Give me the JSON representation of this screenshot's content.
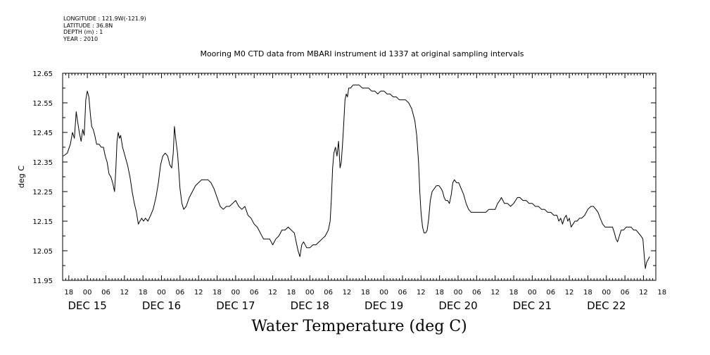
{
  "header": {
    "longitude": "LONGITUDE : 121.9W(-121.9)",
    "latitude": "LATITUDE : 36.8N",
    "depth": "DEPTH (m) : 1",
    "year": "YEAR : 2010"
  },
  "footer_title": "Water Temperature (deg C)",
  "chart_data": {
    "type": "line",
    "title": "Mooring M0 CTD data from MBARI instrument id 1337 at original sampling intervals",
    "xlabel": "",
    "ylabel": "deg C",
    "ylim": [
      11.95,
      12.65
    ],
    "xlim_hours": [
      -8,
      184
    ],
    "y_tick_labels": [
      "11.95",
      "12.05",
      "12.15",
      "12.25",
      "12.35",
      "12.45",
      "12.55",
      "12.65"
    ],
    "x_hour_labels": [
      "18",
      "00",
      "06",
      "12",
      "18",
      "00",
      "06",
      "12",
      "18",
      "00",
      "06",
      "12",
      "18",
      "00",
      "06",
      "12",
      "18",
      "00",
      "06",
      "12",
      "18",
      "00",
      "06",
      "12",
      "18",
      "00",
      "06",
      "12",
      "18",
      "00",
      "06",
      "12",
      "18"
    ],
    "x_day_labels": [
      "DEC 15",
      "DEC 16",
      "DEC 17",
      "DEC 18",
      "DEC 19",
      "DEC 20",
      "DEC 21",
      "DEC 22"
    ],
    "grid": false,
    "series": [
      {
        "color": "#000000",
        "points": [
          [
            -7.8,
            12.37
          ],
          [
            -6.5,
            12.38
          ],
          [
            -5.5,
            12.41
          ],
          [
            -4.8,
            12.45
          ],
          [
            -4.2,
            12.43
          ],
          [
            -3.6,
            12.52
          ],
          [
            -3.2,
            12.49
          ],
          [
            -2.6,
            12.45
          ],
          [
            -2.0,
            12.42
          ],
          [
            -1.5,
            12.46
          ],
          [
            -1.0,
            12.44
          ],
          [
            -0.5,
            12.56
          ],
          [
            0.0,
            12.59
          ],
          [
            0.5,
            12.57
          ],
          [
            1.0,
            12.51
          ],
          [
            1.4,
            12.47
          ],
          [
            1.9,
            12.46
          ],
          [
            2.4,
            12.44
          ],
          [
            3.0,
            12.41
          ],
          [
            3.8,
            12.41
          ],
          [
            4.5,
            12.4
          ],
          [
            5.2,
            12.4
          ],
          [
            5.8,
            12.37
          ],
          [
            6.4,
            12.35
          ],
          [
            7.0,
            12.31
          ],
          [
            7.6,
            12.3
          ],
          [
            8.2,
            12.28
          ],
          [
            8.8,
            12.25
          ],
          [
            9.2,
            12.32
          ],
          [
            9.6,
            12.42
          ],
          [
            10.0,
            12.45
          ],
          [
            10.4,
            12.43
          ],
          [
            10.8,
            12.44
          ],
          [
            11.4,
            12.4
          ],
          [
            12.2,
            12.37
          ],
          [
            13.0,
            12.34
          ],
          [
            13.8,
            12.3
          ],
          [
            14.5,
            12.25
          ],
          [
            15.2,
            12.21
          ],
          [
            15.9,
            12.18
          ],
          [
            16.5,
            12.14
          ],
          [
            17.0,
            12.15
          ],
          [
            17.6,
            12.16
          ],
          [
            18.2,
            12.15
          ],
          [
            18.8,
            12.16
          ],
          [
            19.6,
            12.15
          ],
          [
            20.5,
            12.17
          ],
          [
            21.3,
            12.19
          ],
          [
            22.2,
            12.23
          ],
          [
            23.0,
            12.28
          ],
          [
            23.7,
            12.34
          ],
          [
            24.4,
            12.37
          ],
          [
            25.2,
            12.38
          ],
          [
            26.0,
            12.37
          ],
          [
            26.7,
            12.34
          ],
          [
            27.3,
            12.33
          ],
          [
            27.8,
            12.38
          ],
          [
            28.2,
            12.47
          ],
          [
            28.7,
            12.42
          ],
          [
            29.2,
            12.38
          ],
          [
            29.6,
            12.32
          ],
          [
            30.0,
            12.26
          ],
          [
            30.6,
            12.21
          ],
          [
            31.2,
            12.19
          ],
          [
            32.0,
            12.2
          ],
          [
            33.0,
            12.23
          ],
          [
            34.0,
            12.25
          ],
          [
            35.0,
            12.27
          ],
          [
            36.0,
            12.28
          ],
          [
            37.0,
            12.29
          ],
          [
            38.0,
            12.29
          ],
          [
            39.0,
            12.29
          ],
          [
            40.0,
            12.28
          ],
          [
            41.0,
            12.26
          ],
          [
            42.0,
            12.23
          ],
          [
            43.0,
            12.2
          ],
          [
            44.0,
            12.19
          ],
          [
            45.0,
            12.2
          ],
          [
            46.0,
            12.2
          ],
          [
            47.0,
            12.21
          ],
          [
            48.0,
            12.22
          ],
          [
            49.0,
            12.2
          ],
          [
            50.0,
            12.19
          ],
          [
            51.0,
            12.2
          ],
          [
            52.0,
            12.17
          ],
          [
            53.0,
            12.16
          ],
          [
            54.0,
            12.14
          ],
          [
            55.0,
            12.13
          ],
          [
            56.0,
            12.11
          ],
          [
            57.0,
            12.09
          ],
          [
            58.0,
            12.09
          ],
          [
            59.0,
            12.09
          ],
          [
            60.0,
            12.07
          ],
          [
            61.0,
            12.09
          ],
          [
            62.0,
            12.1
          ],
          [
            63.0,
            12.12
          ],
          [
            64.0,
            12.12
          ],
          [
            65.0,
            12.13
          ],
          [
            66.0,
            12.12
          ],
          [
            67.0,
            12.11
          ],
          [
            67.6,
            12.08
          ],
          [
            68.2,
            12.05
          ],
          [
            68.8,
            12.03
          ],
          [
            69.4,
            12.07
          ],
          [
            70.0,
            12.08
          ],
          [
            71.0,
            12.06
          ],
          [
            72.0,
            12.06
          ],
          [
            73.0,
            12.07
          ],
          [
            74.0,
            12.07
          ],
          [
            75.0,
            12.08
          ],
          [
            76.0,
            12.09
          ],
          [
            77.0,
            12.1
          ],
          [
            78.0,
            12.12
          ],
          [
            78.6,
            12.15
          ],
          [
            79.0,
            12.23
          ],
          [
            79.4,
            12.33
          ],
          [
            79.8,
            12.38
          ],
          [
            80.3,
            12.4
          ],
          [
            80.8,
            12.37
          ],
          [
            81.3,
            12.42
          ],
          [
            81.8,
            12.33
          ],
          [
            82.2,
            12.35
          ],
          [
            82.6,
            12.41
          ],
          [
            83.0,
            12.48
          ],
          [
            83.4,
            12.56
          ],
          [
            83.8,
            12.58
          ],
          [
            84.2,
            12.57
          ],
          [
            84.6,
            12.6
          ],
          [
            85.2,
            12.6
          ],
          [
            86.0,
            12.61
          ],
          [
            87.0,
            12.61
          ],
          [
            88.0,
            12.61
          ],
          [
            89.0,
            12.6
          ],
          [
            90.0,
            12.6
          ],
          [
            91.0,
            12.6
          ],
          [
            92.0,
            12.59
          ],
          [
            93.0,
            12.59
          ],
          [
            94.0,
            12.58
          ],
          [
            95.0,
            12.59
          ],
          [
            96.0,
            12.59
          ],
          [
            97.0,
            12.58
          ],
          [
            98.0,
            12.58
          ],
          [
            99.0,
            12.57
          ],
          [
            100.0,
            12.57
          ],
          [
            101.0,
            12.56
          ],
          [
            102.0,
            12.56
          ],
          [
            103.0,
            12.56
          ],
          [
            104.0,
            12.55
          ],
          [
            105.0,
            12.53
          ],
          [
            106.0,
            12.49
          ],
          [
            106.6,
            12.44
          ],
          [
            107.2,
            12.35
          ],
          [
            107.6,
            12.25
          ],
          [
            108.0,
            12.18
          ],
          [
            108.5,
            12.13
          ],
          [
            109.0,
            12.11
          ],
          [
            109.5,
            12.11
          ],
          [
            110.0,
            12.12
          ],
          [
            110.5,
            12.16
          ],
          [
            111.0,
            12.22
          ],
          [
            111.6,
            12.25
          ],
          [
            112.3,
            12.26
          ],
          [
            113.0,
            12.27
          ],
          [
            113.8,
            12.27
          ],
          [
            114.5,
            12.26
          ],
          [
            115.0,
            12.25
          ],
          [
            115.5,
            12.23
          ],
          [
            116.0,
            12.22
          ],
          [
            116.6,
            12.22
          ],
          [
            117.2,
            12.21
          ],
          [
            117.8,
            12.24
          ],
          [
            118.3,
            12.28
          ],
          [
            118.8,
            12.29
          ],
          [
            119.5,
            12.28
          ],
          [
            120.2,
            12.28
          ],
          [
            121.0,
            12.26
          ],
          [
            121.8,
            12.24
          ],
          [
            122.6,
            12.21
          ],
          [
            123.4,
            12.19
          ],
          [
            124.2,
            12.18
          ],
          [
            125.0,
            12.18
          ],
          [
            126.0,
            12.18
          ],
          [
            127.0,
            12.18
          ],
          [
            128.0,
            12.18
          ],
          [
            129.0,
            12.18
          ],
          [
            130.0,
            12.19
          ],
          [
            131.0,
            12.19
          ],
          [
            132.0,
            12.19
          ],
          [
            132.8,
            12.21
          ],
          [
            133.5,
            12.22
          ],
          [
            134.0,
            12.23
          ],
          [
            134.5,
            12.22
          ],
          [
            135.0,
            12.21
          ],
          [
            136.0,
            12.21
          ],
          [
            137.0,
            12.2
          ],
          [
            138.0,
            12.21
          ],
          [
            138.6,
            12.22
          ],
          [
            139.2,
            12.23
          ],
          [
            140.0,
            12.23
          ],
          [
            141.0,
            12.22
          ],
          [
            142.0,
            12.22
          ],
          [
            143.0,
            12.21
          ],
          [
            144.0,
            12.21
          ],
          [
            145.0,
            12.2
          ],
          [
            146.0,
            12.2
          ],
          [
            147.0,
            12.19
          ],
          [
            148.0,
            12.19
          ],
          [
            149.0,
            12.18
          ],
          [
            150.0,
            12.18
          ],
          [
            151.0,
            12.17
          ],
          [
            152.0,
            12.17
          ],
          [
            152.6,
            12.15
          ],
          [
            153.2,
            12.16
          ],
          [
            153.8,
            12.14
          ],
          [
            154.4,
            12.16
          ],
          [
            155.0,
            12.17
          ],
          [
            155.5,
            12.15
          ],
          [
            156.0,
            12.16
          ],
          [
            156.6,
            12.13
          ],
          [
            157.2,
            12.14
          ],
          [
            157.8,
            12.15
          ],
          [
            158.5,
            12.15
          ],
          [
            159.3,
            12.16
          ],
          [
            160.0,
            12.16
          ],
          [
            161.0,
            12.17
          ],
          [
            162.0,
            12.19
          ],
          [
            163.0,
            12.2
          ],
          [
            163.8,
            12.2
          ],
          [
            164.6,
            12.19
          ],
          [
            165.3,
            12.18
          ],
          [
            166.0,
            12.16
          ],
          [
            166.8,
            12.14
          ],
          [
            167.6,
            12.13
          ],
          [
            168.4,
            12.13
          ],
          [
            169.2,
            12.13
          ],
          [
            170.0,
            12.13
          ],
          [
            170.6,
            12.11
          ],
          [
            171.1,
            12.09
          ],
          [
            171.6,
            12.08
          ],
          [
            172.2,
            12.1
          ],
          [
            172.8,
            12.12
          ],
          [
            173.6,
            12.12
          ],
          [
            174.4,
            12.13
          ],
          [
            175.2,
            12.13
          ],
          [
            176.0,
            12.13
          ],
          [
            176.8,
            12.12
          ],
          [
            177.6,
            12.12
          ],
          [
            178.4,
            12.11
          ],
          [
            179.2,
            12.1
          ],
          [
            179.8,
            12.09
          ],
          [
            180.2,
            12.04
          ],
          [
            180.6,
            11.99
          ],
          [
            181.0,
            12.01
          ],
          [
            181.5,
            12.02
          ],
          [
            182.0,
            12.03
          ]
        ]
      }
    ]
  }
}
